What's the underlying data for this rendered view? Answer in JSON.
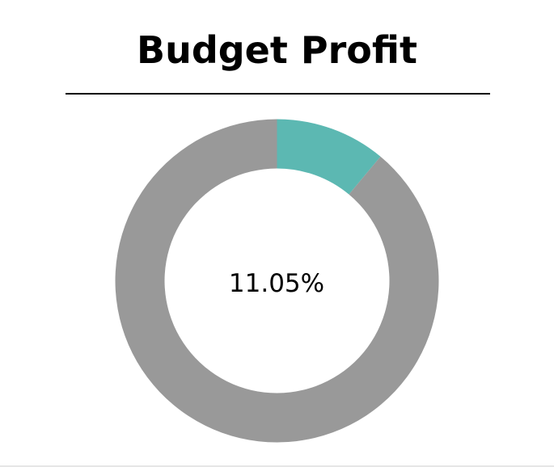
{
  "chart_data": {
    "type": "pie",
    "title": "Budget Profit",
    "center_label": "11.05%",
    "donut": true,
    "slices": [
      {
        "value": 11.05,
        "color": "#5cb8b2"
      },
      {
        "value": 88.95,
        "color": "#999999"
      }
    ]
  }
}
